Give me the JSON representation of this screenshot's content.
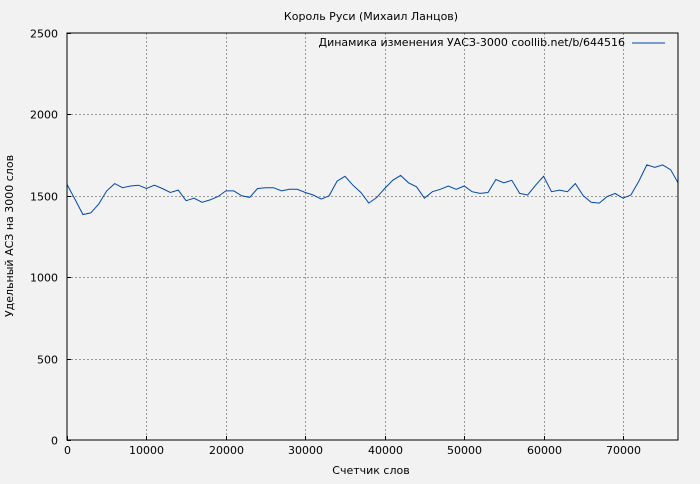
{
  "chart_data": {
    "type": "line",
    "title": "Король Руси (Михаил Ланцов)",
    "xlabel": "Счетчик слов",
    "ylabel": "Удельный АСЗ на 3000 слов",
    "xlim": [
      0,
      77000
    ],
    "ylim": [
      0,
      2500
    ],
    "xticks": [
      0,
      10000,
      20000,
      30000,
      40000,
      50000,
      60000,
      70000
    ],
    "yticks": [
      0,
      500,
      1000,
      1500,
      2000,
      2500
    ],
    "grid": true,
    "legend_position": "top-right",
    "series": [
      {
        "name": "Динамика изменения УАСЗ-3000 coollib.net/b/644516",
        "color": "#0047b3",
        "x": [
          0,
          1000,
          2000,
          3000,
          4000,
          5000,
          6000,
          7000,
          8000,
          9000,
          10000,
          11000,
          12000,
          13000,
          14000,
          15000,
          16000,
          17000,
          18000,
          19000,
          20000,
          21000,
          22000,
          23000,
          24000,
          25000,
          26000,
          27000,
          28000,
          29000,
          30000,
          31000,
          32000,
          33000,
          34000,
          35000,
          36000,
          37000,
          38000,
          39000,
          40000,
          41000,
          42000,
          43000,
          44000,
          45000,
          46000,
          47000,
          48000,
          49000,
          50000,
          51000,
          52000,
          53000,
          54000,
          55000,
          56000,
          57000,
          58000,
          59000,
          60000,
          61000,
          62000,
          63000,
          64000,
          65000,
          66000,
          67000,
          68000,
          69000,
          70000,
          71000,
          72000,
          73000,
          74000,
          75000,
          76000,
          77000
        ],
        "y": [
          1570,
          1480,
          1385,
          1395,
          1450,
          1530,
          1575,
          1550,
          1560,
          1565,
          1545,
          1565,
          1545,
          1520,
          1535,
          1470,
          1485,
          1460,
          1475,
          1495,
          1530,
          1530,
          1500,
          1490,
          1545,
          1550,
          1550,
          1530,
          1540,
          1540,
          1520,
          1505,
          1480,
          1500,
          1590,
          1620,
          1565,
          1520,
          1455,
          1490,
          1545,
          1595,
          1625,
          1580,
          1555,
          1485,
          1525,
          1540,
          1560,
          1540,
          1560,
          1525,
          1515,
          1520,
          1600,
          1580,
          1595,
          1515,
          1505,
          1565,
          1620,
          1525,
          1535,
          1525,
          1575,
          1500,
          1460,
          1455,
          1495,
          1515,
          1485,
          1505,
          1590,
          1690,
          1675,
          1690,
          1660,
          1580
        ]
      }
    ]
  }
}
